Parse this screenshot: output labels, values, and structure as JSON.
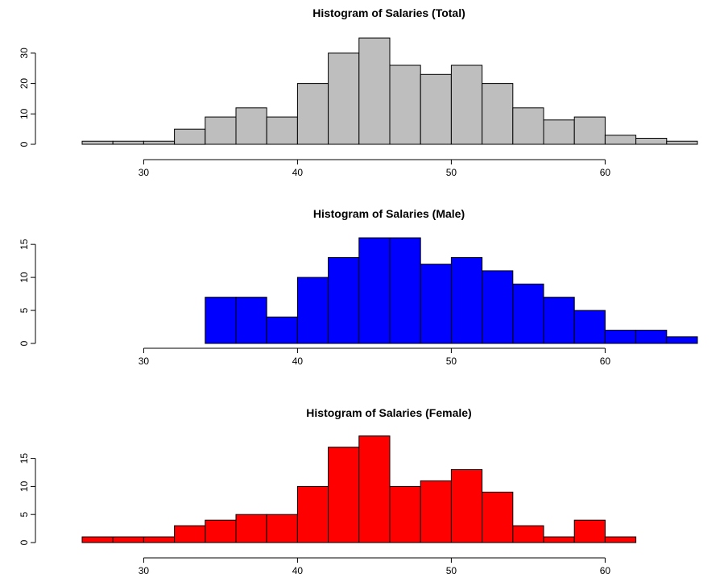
{
  "chart_data": [
    {
      "type": "bar",
      "title": "Histogram of Salaries (Total)",
      "xlabel": "",
      "ylabel": "",
      "fill": "#bebebe",
      "bin_edges": [
        26,
        28,
        30,
        32,
        34,
        36,
        38,
        40,
        42,
        44,
        46,
        48,
        50,
        52,
        54,
        56,
        58,
        60,
        62,
        64,
        66
      ],
      "counts": [
        1,
        1,
        1,
        5,
        9,
        12,
        9,
        20,
        30,
        35,
        26,
        23,
        26,
        20,
        12,
        8,
        9,
        3,
        2,
        1
      ],
      "x_ticks": [
        30,
        40,
        50,
        60
      ],
      "y_ticks": [
        0,
        10,
        20,
        30
      ],
      "xlim": [
        26,
        66
      ],
      "ylim": [
        0,
        35
      ]
    },
    {
      "type": "bar",
      "title": "Histogram of Salaries (Male)",
      "xlabel": "",
      "ylabel": "",
      "fill": "#0000ff",
      "bin_edges": [
        34,
        36,
        38,
        40,
        42,
        44,
        46,
        48,
        50,
        52,
        54,
        56,
        58,
        60,
        62,
        64,
        66
      ],
      "counts": [
        7,
        7,
        4,
        10,
        13,
        16,
        16,
        12,
        13,
        11,
        9,
        7,
        5,
        2,
        2,
        1
      ],
      "x_ticks": [
        30,
        40,
        50,
        60
      ],
      "y_ticks": [
        0,
        5,
        10,
        15
      ],
      "xlim": [
        26,
        66
      ],
      "ylim": [
        0,
        16
      ]
    },
    {
      "type": "bar",
      "title": "Histogram of Salaries (Female)",
      "xlabel": "",
      "ylabel": "",
      "fill": "#ff0000",
      "bin_edges": [
        26,
        28,
        30,
        32,
        34,
        36,
        38,
        40,
        42,
        44,
        46,
        48,
        50,
        52,
        54,
        56,
        58,
        60,
        62
      ],
      "counts": [
        1,
        1,
        1,
        3,
        4,
        5,
        5,
        10,
        17,
        19,
        10,
        11,
        13,
        9,
        3,
        1,
        4,
        1
      ],
      "x_ticks": [
        30,
        40,
        50,
        60
      ],
      "y_ticks": [
        0,
        5,
        10,
        15
      ],
      "xlim": [
        26,
        66
      ],
      "ylim": [
        0,
        19
      ]
    }
  ]
}
